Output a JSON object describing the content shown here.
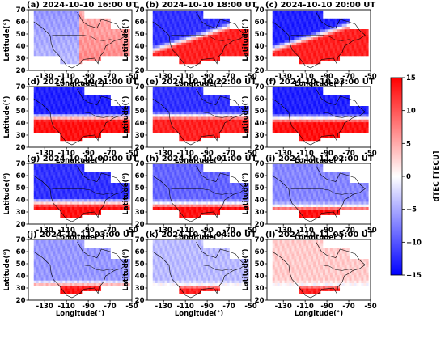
{
  "chart_data": {
    "type": "heatmap",
    "grid": {
      "rows": 4,
      "cols": 3
    },
    "xlabel": "Longitude(°)",
    "ylabel": "Latitude(°)",
    "xlim": [
      -145,
      -50
    ],
    "ylim": [
      20,
      70
    ],
    "xticks": [
      -130,
      -110,
      -90,
      -70,
      -50
    ],
    "yticks": [
      20,
      30,
      40,
      50,
      60,
      70
    ],
    "colorbar": {
      "label": "dTEC [TECU]",
      "min": -15,
      "max": 15,
      "ticks": [
        15,
        10,
        5,
        0,
        -5,
        -10,
        -15
      ],
      "colormap": "bwr",
      "colors": {
        "low": "#0000ff",
        "mid": "#ffffff",
        "high": "#ff0000"
      }
    },
    "panels": [
      {
        "label": "(a) 2024-10-10 16:00 UT",
        "boundary_lat": 45.0,
        "north_dtec": -5,
        "south_dtec": 6,
        "pattern": "east-west",
        "boundary_lon": -100
      },
      {
        "label": "(b) 2024-10-10 18:00 UT",
        "boundary_lat": 48.0,
        "north_dtec": -12,
        "south_dtec": 13,
        "pattern": "diagonal"
      },
      {
        "label": "(c) 2024-10-10 20:00 UT",
        "boundary_lat": 49.0,
        "north_dtec": -13,
        "south_dtec": 13,
        "pattern": "diagonal"
      },
      {
        "label": "(d) 2024-10-10 21:00 UT",
        "boundary_lat": 44.0,
        "north_dtec": -13,
        "south_dtec": 14,
        "pattern": "band"
      },
      {
        "label": "(e) 2024-10-10 22:00 UT",
        "boundary_lat": 45.0,
        "north_dtec": -12,
        "south_dtec": 13,
        "pattern": "band"
      },
      {
        "label": "(f) 2024-10-10 23:00 UT",
        "boundary_lat": 43.0,
        "north_dtec": -13,
        "south_dtec": 14,
        "pattern": "band"
      },
      {
        "label": "(g) 2024-10-11 00:00 UT",
        "boundary_lat": 37.0,
        "north_dtec": -12,
        "south_dtec": 14,
        "pattern": "band"
      },
      {
        "label": "(h) 2024-10-11 01:00 UT",
        "boundary_lat": 36.0,
        "north_dtec": -9,
        "south_dtec": 14,
        "pattern": "band"
      },
      {
        "label": "(i) 2024-10-11 02:00 UT",
        "boundary_lat": 34.0,
        "north_dtec": -7,
        "south_dtec": 14,
        "pattern": "band"
      },
      {
        "label": "(j) 2024-10-11 03:00 UT",
        "boundary_lat": 33.0,
        "north_dtec": -6,
        "south_dtec": 14,
        "pattern": "band"
      },
      {
        "label": "(k) 2024-10-11 04:00 UT",
        "boundary_lat": 32.0,
        "north_dtec": -4,
        "south_dtec": 13,
        "pattern": "band"
      },
      {
        "label": "(l) 2024-10-11 05:00 UT",
        "boundary_lat": 32.0,
        "north_dtec": 3,
        "south_dtec": 13,
        "pattern": "band"
      }
    ]
  }
}
